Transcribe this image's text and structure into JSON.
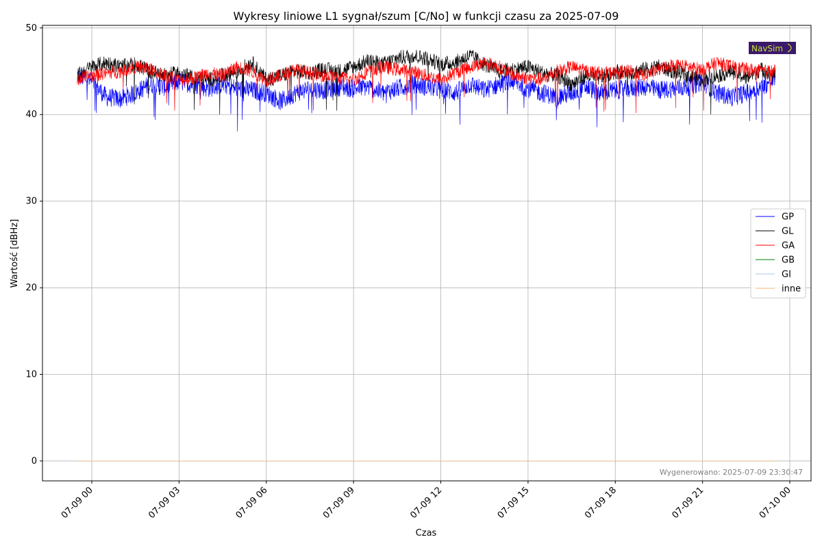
{
  "chart_data": {
    "type": "line",
    "title": "Wykresy liniowe L1 sygnał/szum [C/No] w funkcji czasu za 2025-07-09",
    "xlabel": "Czas",
    "ylabel": "Wartość [dBHz]",
    "x_range": [
      "2025-07-08T21:30",
      "2025-07-10T01:50"
    ],
    "ylim": [
      -2.3,
      50.3
    ],
    "y_ticks": [
      0,
      10,
      20,
      30,
      40,
      50
    ],
    "x_tick_labels": [
      "07-09 00",
      "07-09 03",
      "07-09 06",
      "07-09 09",
      "07-09 12",
      "07-09 15",
      "07-09 18",
      "07-09 21",
      "07-10 00"
    ],
    "x_tick_hours": [
      24,
      27,
      30,
      33,
      36,
      39,
      42,
      45,
      48
    ],
    "grid": true,
    "legend_position": "center-right",
    "data_span_hours": [
      23.5,
      47.5
    ],
    "series": [
      {
        "name": "GP",
        "color": "#0000ff",
        "x_hours": [
          23.5,
          24,
          24.5,
          25,
          25.5,
          26,
          26.5,
          27,
          27.5,
          28,
          28.5,
          29,
          29.5,
          30,
          30.5,
          31,
          31.5,
          32,
          32.5,
          33,
          33.5,
          34,
          34.5,
          35,
          35.5,
          36,
          36.5,
          37,
          37.5,
          38,
          38.5,
          39,
          39.5,
          40,
          40.5,
          41,
          41.5,
          42,
          42.5,
          43,
          43.5,
          44,
          44.5,
          45,
          45.5,
          46,
          46.5,
          47,
          47.5
        ],
        "values": [
          44.5,
          43.8,
          42.0,
          41.8,
          42.5,
          43.5,
          43.2,
          43.8,
          43.5,
          43.0,
          43.5,
          43.0,
          42.8,
          42.5,
          41.5,
          42.5,
          43.0,
          42.8,
          43.2,
          43.0,
          43.2,
          42.5,
          43.0,
          43.5,
          43.2,
          43.0,
          42.5,
          43.5,
          42.8,
          43.5,
          43.8,
          43.0,
          42.5,
          42.0,
          42.5,
          43.2,
          42.5,
          42.8,
          43.0,
          43.2,
          42.8,
          43.0,
          43.2,
          43.8,
          42.5,
          42.0,
          42.5,
          43.2,
          44.0
        ]
      },
      {
        "name": "GL",
        "color": "#000000",
        "x_hours": [
          23.5,
          24,
          24.5,
          25,
          25.5,
          26,
          26.5,
          27,
          27.5,
          28,
          28.5,
          29,
          29.5,
          30,
          30.5,
          31,
          31.5,
          32,
          32.5,
          33,
          33.5,
          34,
          34.5,
          35,
          35.5,
          36,
          36.5,
          37,
          37.5,
          38,
          38.5,
          39,
          39.5,
          40,
          40.5,
          41,
          41.5,
          42,
          42.5,
          43,
          43.5,
          44,
          44.5,
          45,
          45.5,
          46,
          46.5,
          47,
          47.5
        ],
        "values": [
          44.5,
          45.5,
          46.0,
          45.5,
          45.8,
          45.0,
          44.5,
          44.8,
          44.2,
          44.0,
          44.5,
          45.0,
          46.0,
          44.0,
          44.5,
          45.0,
          44.8,
          45.2,
          45.0,
          45.5,
          46.2,
          45.8,
          46.5,
          46.8,
          46.5,
          45.8,
          46.0,
          46.8,
          45.8,
          45.0,
          45.2,
          45.5,
          44.8,
          44.5,
          43.5,
          44.5,
          44.2,
          45.0,
          44.8,
          45.2,
          45.5,
          45.0,
          44.5,
          44.0,
          44.5,
          45.0,
          44.2,
          45.2,
          44.5
        ]
      },
      {
        "name": "GA",
        "color": "#ff0000",
        "x_hours": [
          23.5,
          24,
          24.5,
          25,
          25.5,
          26,
          26.5,
          27,
          27.5,
          28,
          28.5,
          29,
          29.5,
          30,
          30.5,
          31,
          31.5,
          32,
          32.5,
          33,
          33.5,
          34,
          34.5,
          35,
          35.5,
          36,
          36.5,
          37,
          37.5,
          38,
          38.5,
          39,
          39.5,
          40,
          40.5,
          41,
          41.5,
          42,
          42.5,
          43,
          43.5,
          44,
          44.5,
          45,
          45.5,
          46,
          46.5,
          47,
          47.5
        ],
        "values": [
          44.0,
          44.5,
          44.8,
          45.0,
          45.5,
          45.2,
          44.5,
          44.0,
          44.2,
          44.8,
          44.5,
          45.5,
          45.0,
          44.0,
          44.5,
          45.2,
          44.8,
          44.5,
          44.2,
          44.0,
          45.0,
          45.5,
          45.2,
          45.0,
          44.5,
          44.0,
          44.8,
          45.5,
          46.0,
          45.5,
          44.5,
          44.2,
          44.0,
          45.0,
          45.5,
          45.0,
          44.8,
          44.8,
          45.0,
          44.5,
          45.2,
          45.8,
          45.5,
          45.2,
          46.0,
          45.5,
          45.2,
          45.0,
          45.0
        ]
      },
      {
        "name": "GB",
        "color": "#008000",
        "x_hours": [
          23.5,
          47.5
        ],
        "values": [
          0,
          0
        ]
      },
      {
        "name": "GI",
        "color": "#aec7e8",
        "x_hours": [
          23.5,
          47.5
        ],
        "values": [
          0,
          0
        ]
      },
      {
        "name": "inne",
        "color": "#ffbb78",
        "x_hours": [
          23.5,
          47.5
        ],
        "values": [
          0,
          0
        ]
      }
    ],
    "annotation": "Wygenerowano: 2025-07-09 23:30:47",
    "logo_text": "NavSim"
  }
}
